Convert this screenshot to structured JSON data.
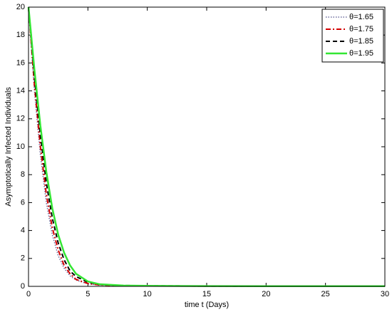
{
  "chart_data": {
    "type": "line",
    "xlabel": "time t (Days)",
    "ylabel": "Asymptotically Infected Individuals",
    "x": [
      0,
      0.5,
      1,
      1.5,
      2,
      2.5,
      3,
      3.5,
      4,
      5,
      6,
      8,
      10,
      15,
      20,
      25,
      30
    ],
    "series": [
      {
        "name": "θ=1.65",
        "color": "#6b6b9e",
        "style": "dotted",
        "values": [
          20,
          14,
          9.4,
          6,
          3.7,
          2.2,
          1.3,
          0.75,
          0.45,
          0.18,
          0.09,
          0.05,
          0.03,
          0.02,
          0.01,
          0.01,
          0.01
        ]
      },
      {
        "name": "θ=1.75",
        "color": "#d40000",
        "style": "dashdot",
        "values": [
          20,
          14.4,
          10,
          6.6,
          4.2,
          2.6,
          1.5,
          0.9,
          0.5,
          0.2,
          0.1,
          0.05,
          0.03,
          0.02,
          0.01,
          0.01,
          0.01
        ]
      },
      {
        "name": "θ=1.85",
        "color": "#000000",
        "style": "dashed",
        "values": [
          20,
          15,
          10.8,
          7.4,
          4.9,
          3.1,
          1.9,
          1.1,
          0.7,
          0.3,
          0.13,
          0.06,
          0.04,
          0.02,
          0.01,
          0.01,
          0.01
        ]
      },
      {
        "name": "θ=1.95",
        "color": "#33e633",
        "style": "solid",
        "values": [
          20,
          15.5,
          11.5,
          8.2,
          5.6,
          3.7,
          2.4,
          1.5,
          0.9,
          0.35,
          0.15,
          0.06,
          0.04,
          0.02,
          0.01,
          0.01,
          0.01
        ]
      }
    ],
    "xlim": [
      0,
      30
    ],
    "xticks": [
      0,
      5,
      10,
      15,
      20,
      25,
      30
    ],
    "ylim": [
      0,
      20
    ],
    "yticks": [
      0,
      2,
      4,
      6,
      8,
      10,
      12,
      14,
      16,
      18,
      20
    ],
    "grid": false,
    "legend": "upper right"
  }
}
